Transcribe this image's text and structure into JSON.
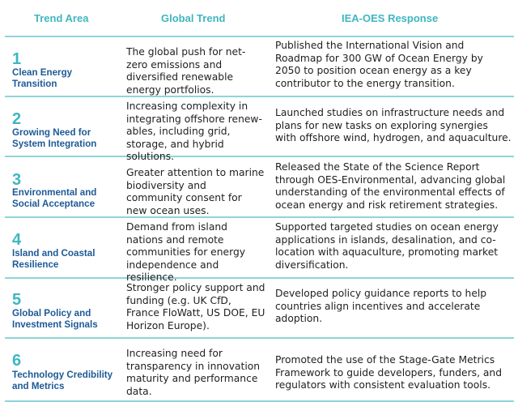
{
  "headers": {
    "trend_area": "Trend Area",
    "global_trend": "Global Trend",
    "response": "IEA-OES Response"
  },
  "rows": [
    {
      "number": "1",
      "area": "Clean Energy Transition",
      "trend": "The global push for net-zero emissions and diversified renewable energy portfolios.",
      "response": "Published the International Vision and Roadmap for 300 GW of Ocean Energy by 2050 to position ocean energy as a key contributor to the energy transition."
    },
    {
      "number": "2",
      "area": "Growing Need for System Integration",
      "trend": "Increasing complexity in integrating offshore renew-ables, including grid, storage, and hybrid solutions.",
      "response": "Launched studies on infrastructure needs and plans for new tasks on exploring synergies with offshore wind, hydrogen, and aquaculture."
    },
    {
      "number": "3",
      "area": "Environmental and Social Acceptance",
      "trend": "Greater attention to marine biodiversity and community consent for new ocean uses.",
      "response": "Released the State of the Science Report through OES-Environmental, advancing global understanding of the environmental effects of ocean energy and risk retirement strategies."
    },
    {
      "number": "4",
      "area": "Island and Coastal Resilience",
      "trend": "Demand from island nations and remote communities for energy independence and resilience.",
      "response": "Supported targeted studies on ocean energy applications in islands, desalination, and co-location with aquaculture, promoting market diversification."
    },
    {
      "number": "5",
      "area": "Global Policy and Investment Signals",
      "trend": "Stronger policy support and funding (e.g. UK CfD, France FloWatt, US DOE, EU Horizon Europe).",
      "response": "Developed policy guidance reports to help countries align incentives and accelerate adoption."
    },
    {
      "number": "6",
      "area": "Technology Credibility and Metrics",
      "trend": "Increasing need for transparency in innovation maturity and performance data.",
      "response": "Promoted the use of the Stage-Gate Metrics Framework to guide developers, funders, and regulators with consistent evaluation tools."
    }
  ]
}
